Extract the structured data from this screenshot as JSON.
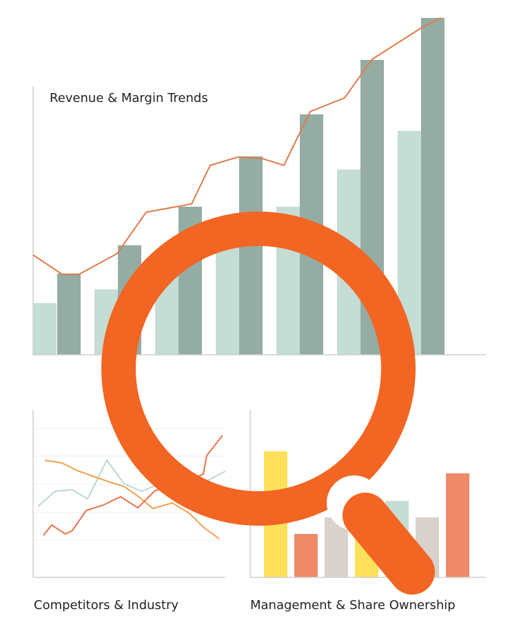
{
  "charts": {
    "main_title": "Revenue & Margin Trends",
    "left_caption": "Competitors & Industry",
    "right_caption": "Management & Share Ownership"
  }
}
